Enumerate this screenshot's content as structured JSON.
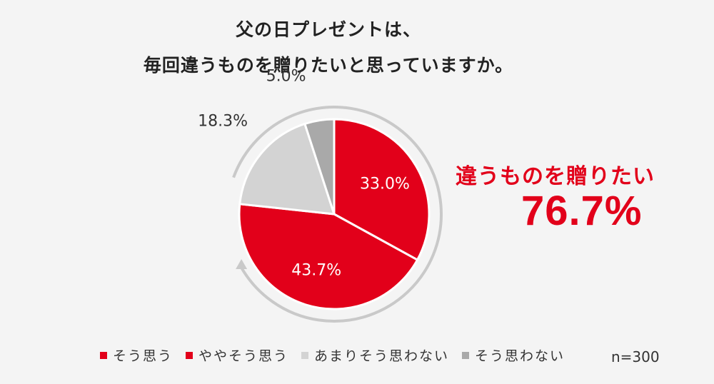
{
  "title_line1": "父の日プレゼントは、",
  "title_line2": "毎回違うものを贈りたいと思っていますか。",
  "chart_data": {
    "type": "pie",
    "title": "父の日プレゼントは、毎回違うものを贈りたいと思っていますか。",
    "categories": [
      "そう思う",
      "ややそう思う",
      "あまりそう思わない",
      "そう思わない"
    ],
    "values": [
      33.0,
      43.7,
      18.3,
      5.0
    ],
    "labels": [
      "33.0%",
      "43.7%",
      "18.3%",
      "5.0%"
    ],
    "colors": [
      "#e2001a",
      "#e2001a",
      "#d3d3d3",
      "#a9a9a9"
    ],
    "legend_position": "bottom",
    "annotation": {
      "label": "違うものを贈りたい",
      "value": "76.7%"
    },
    "sample_size": "n=300"
  }
}
